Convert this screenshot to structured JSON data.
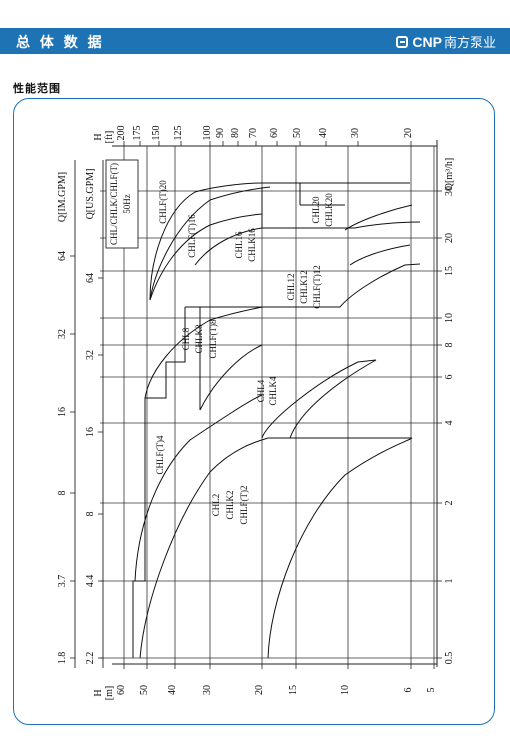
{
  "header": {
    "title": "总 体 数 据",
    "brand_en": "CNP",
    "brand_cn": "南方泵业",
    "brand_icon": "cnp-logo-icon"
  },
  "section": {
    "title": "性能范围"
  },
  "chart_data": {
    "type": "line",
    "title": "CHL/CHLK/CHLF(T)",
    "subtitle": "50Hz",
    "orientation": "rotated-90",
    "axes": {
      "q_m3h": {
        "label": "Q[m³/h]",
        "ticks": [
          "0.5",
          "1",
          "2",
          "4",
          "6",
          "8",
          "10",
          "15",
          "20",
          "30"
        ]
      },
      "q_us_gpm": {
        "label": "Q[US.GPM]",
        "ticks": [
          "2.2",
          "4.4",
          "8",
          "16",
          "32",
          "64"
        ]
      },
      "q_im_gpm": {
        "label": "Q[IM.GPM]",
        "ticks": [
          "1.8",
          "3.7",
          "8",
          "16",
          "32",
          "64"
        ]
      },
      "h_m": {
        "label_top": "H",
        "label_bottom": "[m]",
        "ticks": [
          "60",
          "50",
          "40",
          "30",
          "20",
          "15",
          "10",
          "6",
          "5"
        ]
      },
      "h_ft": {
        "label_top": "H",
        "label_bottom": "[ft]",
        "ticks": [
          "200",
          "175",
          "150",
          "125",
          "100",
          "90",
          "80",
          "70",
          "60",
          "50",
          "40",
          "30",
          "20"
        ]
      }
    },
    "series": [
      {
        "name": "CHL2 / CHLK2 / CHLF(T)2",
        "q_range": [
          0.5,
          4.5
        ],
        "h_range": [
          5,
          48
        ]
      },
      {
        "name": "CHL4 / CHLK4",
        "q_range": [
          1.5,
          6.5
        ],
        "h_range": [
          6,
          48
        ]
      },
      {
        "name": "CHLF(T)4",
        "q_range": [
          0.5,
          4.5
        ],
        "h_range": [
          22,
          58
        ]
      },
      {
        "name": "CHL8 / CHLK8 / CHLF(T)8",
        "q_range": [
          3,
          11
        ],
        "h_range": [
          16,
          58
        ]
      },
      {
        "name": "CHL12 / CHLK12 / CHLF(T)12",
        "q_range": [
          5.5,
          16
        ],
        "h_range": [
          9,
          55
        ]
      },
      {
        "name": "CHL16 / CHLK16",
        "q_range": [
          8,
          20
        ],
        "h_range": [
          15,
          58
        ]
      },
      {
        "name": "CHLF(T)16",
        "q_range": [
          8,
          22
        ],
        "h_range": [
          22,
          58
        ]
      },
      {
        "name": "CHL20 / CHLK20",
        "q_range": [
          10,
          30
        ],
        "h_range": [
          9,
          38
        ]
      },
      {
        "name": "CHLF(T)20",
        "q_range": [
          10,
          30
        ],
        "h_range": [
          22,
          58
        ]
      }
    ],
    "labels": {
      "chl2": [
        "CHL2",
        "CHLK2",
        "CHLF(T)2"
      ],
      "chl4": [
        "CHL4",
        "CHLK4"
      ],
      "chlf4": [
        "CHLF(T)4"
      ],
      "chl8": [
        "CHL8",
        "CHLK8",
        "CHLF(T)8"
      ],
      "chl12": [
        "CHL12",
        "CHLK12",
        "CHLF(T)12"
      ],
      "chl16": [
        "CHL16",
        "CHLK16"
      ],
      "chlf16": [
        "CHLF(T)16"
      ],
      "chl20": [
        "CHL20",
        "CHLK20"
      ],
      "chlf20": [
        "CHLF(T)20"
      ]
    }
  }
}
